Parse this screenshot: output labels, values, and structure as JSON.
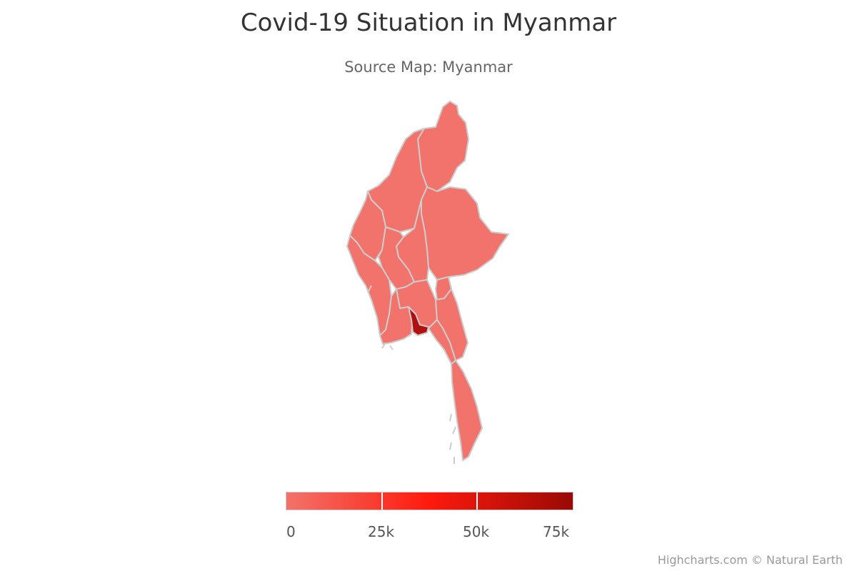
{
  "title": "Covid-19 Situation in Myanmar",
  "subtitle": "Source Map: Myanmar",
  "legend": {
    "labels": [
      "0",
      "25k",
      "50k",
      "75k"
    ],
    "min_color": "#f2736b",
    "mid_color": "#ff1a0d",
    "max_color": "#990a05"
  },
  "map": {
    "region_color": "#f2736b",
    "highlight_color": "#b01010",
    "border_color": "#cccccc"
  },
  "credits": "Highcharts.com © Natural Earth"
}
